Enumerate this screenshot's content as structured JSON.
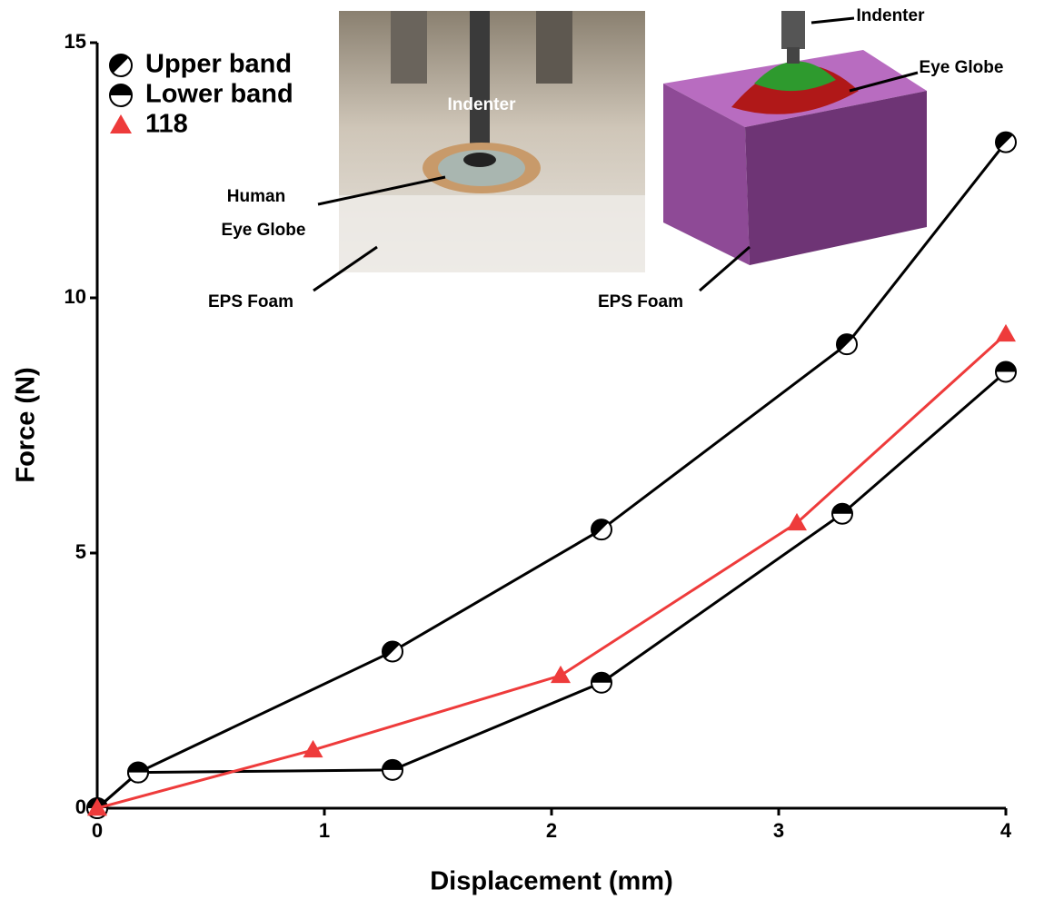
{
  "chart_data": {
    "type": "line",
    "xlabel": "Displacement (mm)",
    "ylabel": "Force (N)",
    "xlim": [
      0,
      4
    ],
    "ylim": [
      0,
      15
    ],
    "xticks": [
      0,
      1,
      2,
      3,
      4
    ],
    "yticks": [
      0,
      5,
      10,
      15
    ],
    "grid": false,
    "legend": "upper left",
    "series": [
      {
        "name": "Upper band",
        "color": "#000000",
        "marker": "circle-half-upper",
        "x": [
          0,
          0.18,
          1.3,
          2.22,
          3.3,
          4
        ],
        "values": [
          0,
          0.7,
          3.07,
          5.46,
          9.09,
          13.05
        ]
      },
      {
        "name": "Lower band",
        "color": "#000000",
        "marker": "circle-half-top",
        "x": [
          0,
          0.18,
          1.3,
          2.22,
          3.28,
          4
        ],
        "values": [
          0,
          0.7,
          0.75,
          2.46,
          5.77,
          8.55
        ]
      },
      {
        "name": "118",
        "color": "#ee3b3b",
        "marker": "triangle",
        "x": [
          0,
          0.95,
          2.04,
          3.08,
          4
        ],
        "values": [
          0,
          1.14,
          2.6,
          5.59,
          9.29
        ]
      }
    ],
    "annotations": [
      "Indenter",
      "Human",
      "Eye Globe",
      "EPS Foam",
      "Indenter",
      "Eye Globe",
      "EPS Foam"
    ]
  }
}
